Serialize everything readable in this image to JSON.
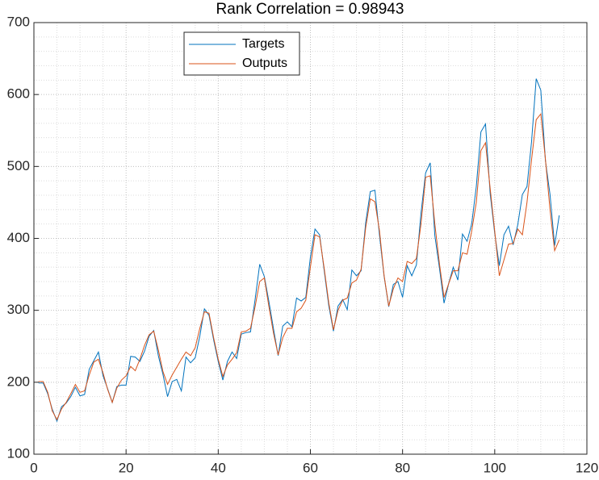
{
  "chart_data": {
    "type": "line",
    "title": "Rank Correlation = 0.98943",
    "x": [
      1,
      2,
      3,
      4,
      5,
      6,
      7,
      8,
      9,
      10,
      11,
      12,
      13,
      14,
      15,
      16,
      17,
      18,
      19,
      20,
      21,
      22,
      23,
      24,
      25,
      26,
      27,
      28,
      29,
      30,
      31,
      32,
      33,
      34,
      35,
      36,
      37,
      38,
      39,
      40,
      41,
      42,
      43,
      44,
      45,
      46,
      47,
      48,
      49,
      50,
      51,
      52,
      53,
      54,
      55,
      56,
      57,
      58,
      59,
      60,
      61,
      62,
      63,
      64,
      65,
      66,
      67,
      68,
      69,
      70,
      71,
      72,
      73,
      74,
      75,
      76,
      77,
      78,
      79,
      80,
      81,
      82,
      83,
      84,
      85,
      86,
      87,
      88,
      89,
      90,
      91,
      92,
      93,
      94,
      95,
      96,
      97,
      98,
      99,
      100,
      101,
      102,
      103,
      104,
      105,
      106,
      107,
      108,
      109,
      110,
      111,
      112,
      113,
      114
    ],
    "series": [
      {
        "name": "Targets",
        "color": "#0072BD",
        "values": [
          199,
          199,
          184,
          162,
          146,
          166,
          171,
          180,
          193,
          181,
          183,
          218,
          230,
          242,
          209,
          191,
          172,
          194,
          196,
          196,
          236,
          235,
          229,
          243,
          264,
          272,
          237,
          211,
          180,
          201,
          204,
          188,
          235,
          227,
          234,
          264,
          302,
          293,
          259,
          229,
          203,
          229,
          242,
          233,
          267,
          269,
          270,
          315,
          364,
          347,
          312,
          274,
          237,
          278,
          284,
          277,
          317,
          313,
          318,
          374,
          413,
          405,
          355,
          306,
          271,
          306,
          315,
          301,
          356,
          348,
          355,
          422,
          465,
          467,
          404,
          347,
          305,
          336,
          340,
          318,
          362,
          348,
          363,
          435,
          491,
          505,
          404,
          359,
          310,
          337,
          360,
          342,
          406,
          396,
          420,
          472,
          548,
          559,
          463,
          407,
          362,
          405,
          417,
          391,
          419,
          461,
          472,
          535,
          622,
          606,
          508,
          461,
          390,
          432
        ]
      },
      {
        "name": "Outputs",
        "color": "#D95319",
        "values": [
          201,
          201,
          186,
          160,
          148,
          163,
          172,
          184,
          197,
          186,
          188,
          210,
          228,
          232,
          213,
          190,
          172,
          192,
          203,
          209,
          222,
          216,
          232,
          251,
          266,
          271,
          245,
          215,
          197,
          210,
          221,
          232,
          242,
          237,
          248,
          275,
          298,
          296,
          262,
          232,
          208,
          224,
          232,
          241,
          270,
          271,
          275,
          305,
          340,
          345,
          305,
          268,
          238,
          262,
          275,
          275,
          298,
          303,
          314,
          360,
          405,
          402,
          358,
          310,
          273,
          300,
          314,
          317,
          338,
          342,
          357,
          415,
          455,
          451,
          410,
          348,
          306,
          330,
          345,
          340,
          368,
          365,
          372,
          420,
          485,
          487,
          420,
          365,
          318,
          337,
          355,
          355,
          380,
          378,
          410,
          450,
          522,
          533,
          470,
          410,
          348,
          370,
          392,
          393,
          413,
          405,
          450,
          510,
          565,
          573,
          510,
          440,
          383,
          398
        ]
      }
    ],
    "xlim": [
      0,
      120
    ],
    "xticks": [
      0,
      20,
      40,
      60,
      80,
      100,
      120
    ],
    "ylim": [
      100,
      700
    ],
    "yticks": [
      100,
      200,
      300,
      400,
      500,
      600,
      700
    ],
    "grid": true,
    "minor_grid": true,
    "legend": "upper left"
  }
}
